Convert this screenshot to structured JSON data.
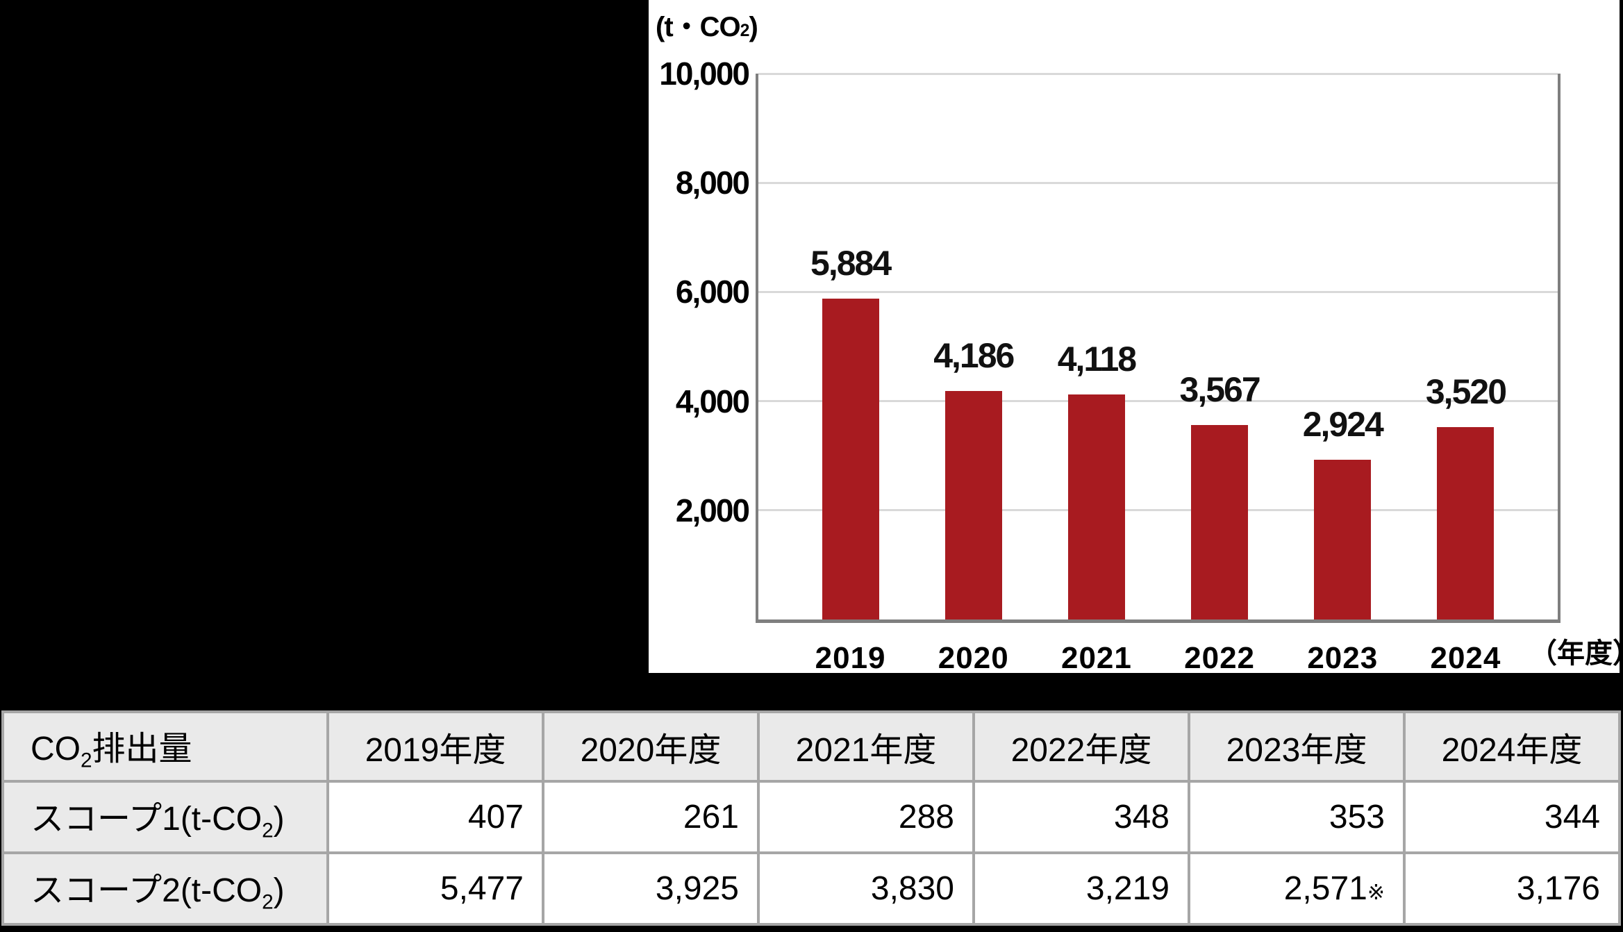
{
  "chart_data": {
    "type": "bar",
    "title": "",
    "unit_prefix": "(t・CO",
    "unit_sub": "2",
    "unit_suffix": ")",
    "xaxis_unit": "（年度）",
    "categories": [
      "2019",
      "2020",
      "2021",
      "2022",
      "2023",
      "2024"
    ],
    "values": [
      5884,
      4186,
      4118,
      3567,
      2924,
      3520
    ],
    "value_labels": [
      "5,884",
      "4,186",
      "4,118",
      "3,567",
      "2,924",
      "3,520"
    ],
    "xlabel": "年度",
    "ylabel": "t・CO2",
    "ylim": [
      0,
      10000
    ],
    "yticks": [
      2000,
      4000,
      6000,
      8000,
      10000
    ],
    "ytick_labels": [
      "2,000",
      "4,000",
      "6,000",
      "8,000",
      "10,000"
    ],
    "grid": true,
    "legend": false,
    "bar_color": "#a81b20",
    "gridline_color": "#d9d9d9",
    "axis_color": "#7f7f7f"
  },
  "table": {
    "header": {
      "col1": {
        "prefix": "CO",
        "sub": "2",
        "suffix": "排出量"
      },
      "years": [
        "2019年度",
        "2020年度",
        "2021年度",
        "2022年度",
        "2023年度",
        "2024年度"
      ]
    },
    "rows": [
      {
        "label": {
          "prefix": "スコープ1(t-CO",
          "sub": "2",
          "suffix": ")"
        },
        "values": [
          "407",
          "261",
          "288",
          "348",
          "353",
          "344"
        ],
        "notes": [
          "",
          "",
          "",
          "",
          "",
          ""
        ]
      },
      {
        "label": {
          "prefix": "スコープ2(t-CO",
          "sub": "2",
          "suffix": ")"
        },
        "values": [
          "5,477",
          "3,925",
          "3,830",
          "3,219",
          "2,571",
          "3,176"
        ],
        "notes": [
          "",
          "",
          "",
          "",
          "※",
          ""
        ]
      }
    ],
    "header_bg": "#eaeaea",
    "border_color": "#a6a6a6"
  }
}
